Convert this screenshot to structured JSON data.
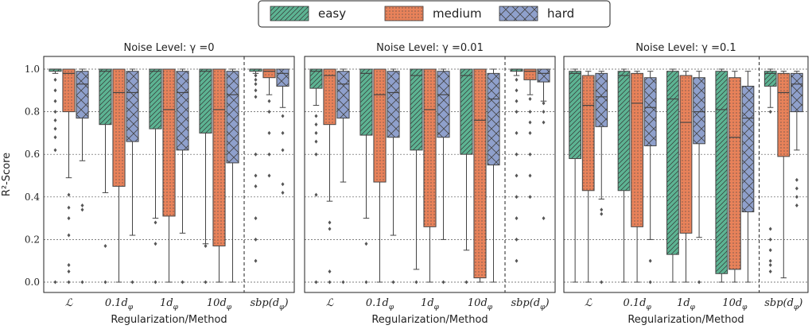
{
  "colors": {
    "easy": "#5db493",
    "medium": "#e8825a",
    "hard": "#8fa0cc"
  },
  "legend": {
    "placement": "top-center",
    "entries": [
      {
        "name": "easy",
        "pattern": "diagonal-hatch"
      },
      {
        "name": "medium",
        "pattern": "dots"
      },
      {
        "name": "hard",
        "pattern": "cross-hatch"
      }
    ]
  },
  "chart_data": [
    {
      "type": "boxplot",
      "title": "Noise Level: γ =0",
      "xlabel": "Regularization/Method",
      "ylabel": "R²-Score",
      "ylim": [
        0,
        1.0
      ],
      "yticks": [
        "0.0",
        "0.2",
        "0.4",
        "0.6",
        "0.8",
        "1.0"
      ],
      "grid": true,
      "categories": [
        "𝓛",
        "0.1d_φ",
        "1d_φ",
        "10d_φ",
        "sbp(d_φ)"
      ],
      "category_labels": [
        [
          "ℒ",
          ""
        ],
        [
          "0.1d",
          "φ"
        ],
        [
          "1d",
          "φ"
        ],
        [
          "10d",
          "φ"
        ],
        [
          "sbp(d",
          "φ",
          ")"
        ]
      ],
      "series": [
        {
          "name": "easy",
          "boxes": [
            {
              "q1": 0.99,
              "med": 1.0,
              "q3": 1.0,
              "wlo": 0.98,
              "whi": 1.0,
              "fliers": [
                0.95,
                0.9,
                0.85,
                0.8,
                0.76,
                0.72,
                0.68,
                0.62,
                0.0
              ]
            },
            {
              "q1": 0.74,
              "med": 0.99,
              "q3": 1.0,
              "wlo": 0.42,
              "whi": 1.0,
              "fliers": [
                0.17,
                0.0
              ]
            },
            {
              "q1": 0.72,
              "med": 0.99,
              "q3": 1.0,
              "wlo": 0.3,
              "whi": 1.0,
              "fliers": [
                0.28,
                0.18,
                0.0
              ]
            },
            {
              "q1": 0.7,
              "med": 0.99,
              "q3": 1.0,
              "wlo": 0.18,
              "whi": 1.0,
              "fliers": [
                0.17,
                0.0
              ]
            },
            {
              "q1": 0.99,
              "med": 1.0,
              "q3": 1.0,
              "wlo": 0.98,
              "whi": 1.0,
              "fliers": [
                0.97,
                0.95,
                0.93,
                0.9,
                0.87,
                0.6,
                0.5,
                0.45,
                0.3,
                0.2,
                0.1
              ]
            }
          ]
        },
        {
          "name": "medium",
          "boxes": [
            {
              "q1": 0.8,
              "med": 0.98,
              "q3": 1.0,
              "wlo": 0.49,
              "whi": 1.0,
              "fliers": [
                0.41,
                0.35,
                0.3,
                0.22,
                0.08,
                0.05,
                0.0
              ]
            },
            {
              "q1": 0.45,
              "med": 0.89,
              "q3": 1.0,
              "wlo": 0.0,
              "whi": 1.0,
              "fliers": []
            },
            {
              "q1": 0.31,
              "med": 0.81,
              "q3": 1.0,
              "wlo": 0.0,
              "whi": 1.0,
              "fliers": []
            },
            {
              "q1": 0.17,
              "med": 0.81,
              "q3": 1.0,
              "wlo": 0.0,
              "whi": 1.0,
              "fliers": []
            },
            {
              "q1": 0.96,
              "med": 0.99,
              "q3": 1.0,
              "wlo": 0.88,
              "whi": 1.0,
              "fliers": [
                0.85,
                0.8,
                0.7,
                0.6,
                0.5
              ]
            }
          ]
        },
        {
          "name": "hard",
          "boxes": [
            {
              "q1": 0.77,
              "med": 0.93,
              "q3": 0.99,
              "wlo": 0.57,
              "whi": 1.0,
              "fliers": [
                0.36,
                0.34,
                0.0
              ]
            },
            {
              "q1": 0.66,
              "med": 0.89,
              "q3": 0.99,
              "wlo": 0.22,
              "whi": 1.0,
              "fliers": [
                0.0
              ]
            },
            {
              "q1": 0.62,
              "med": 0.89,
              "q3": 0.99,
              "wlo": 0.23,
              "whi": 1.0,
              "fliers": [
                0.0
              ]
            },
            {
              "q1": 0.56,
              "med": 0.88,
              "q3": 0.99,
              "wlo": 0.0,
              "whi": 1.0,
              "fliers": []
            },
            {
              "q1": 0.92,
              "med": 0.98,
              "q3": 1.0,
              "wlo": 0.82,
              "whi": 1.0,
              "fliers": [
                0.78,
                0.7,
                0.62,
                0.46,
                0.42
              ]
            }
          ]
        }
      ]
    },
    {
      "type": "boxplot",
      "title": "Noise Level: γ =0.01",
      "xlabel": "Regularization/Method",
      "ylim": [
        0,
        1.0
      ],
      "grid": true,
      "categories": [
        "𝓛",
        "0.1d_φ",
        "1d_φ",
        "10d_φ",
        "sbp(d_φ)"
      ],
      "category_labels": [
        [
          "ℒ",
          ""
        ],
        [
          "0.1d",
          "φ"
        ],
        [
          "1d",
          "φ"
        ],
        [
          "10d",
          "φ"
        ],
        [
          "sbp(d",
          "φ",
          ")"
        ]
      ],
      "series": [
        {
          "name": "easy",
          "boxes": [
            {
              "q1": 0.91,
              "med": 0.99,
              "q3": 1.0,
              "wlo": 0.83,
              "whi": 1.0,
              "fliers": [
                0.78,
                0.74,
                0.7,
                0.66,
                0.6,
                0.41,
                0.0
              ]
            },
            {
              "q1": 0.69,
              "med": 0.98,
              "q3": 1.0,
              "wlo": 0.3,
              "whi": 1.0,
              "fliers": [
                0.18,
                0.0
              ]
            },
            {
              "q1": 0.62,
              "med": 0.97,
              "q3": 1.0,
              "wlo": 0.06,
              "whi": 1.0,
              "fliers": [
                0.0
              ]
            },
            {
              "q1": 0.6,
              "med": 0.97,
              "q3": 1.0,
              "wlo": 0.15,
              "whi": 1.0,
              "fliers": [
                0.0
              ]
            },
            {
              "q1": 0.99,
              "med": 1.0,
              "q3": 1.0,
              "wlo": 0.97,
              "whi": 1.0,
              "fliers": [
                0.95,
                0.9,
                0.85,
                0.8,
                0.7,
                0.6,
                0.5,
                0.4,
                0.3,
                0.2,
                0.1
              ]
            }
          ]
        },
        {
          "name": "medium",
          "boxes": [
            {
              "q1": 0.74,
              "med": 0.97,
              "q3": 1.0,
              "wlo": 0.38,
              "whi": 1.0,
              "fliers": [
                0.28,
                0.25,
                0.05,
                0.0
              ]
            },
            {
              "q1": 0.47,
              "med": 0.88,
              "q3": 1.0,
              "wlo": 0.0,
              "whi": 1.0,
              "fliers": []
            },
            {
              "q1": 0.26,
              "med": 0.81,
              "q3": 1.0,
              "wlo": 0.0,
              "whi": 1.0,
              "fliers": []
            },
            {
              "q1": 0.02,
              "med": 0.76,
              "q3": 1.0,
              "wlo": 0.0,
              "whi": 1.0,
              "fliers": []
            },
            {
              "q1": 0.95,
              "med": 0.99,
              "q3": 1.0,
              "wlo": 0.88,
              "whi": 1.0,
              "fliers": [
                0.86,
                0.8,
                0.75,
                0.7,
                0.6,
                0.5,
                0.4
              ]
            }
          ]
        },
        {
          "name": "hard",
          "boxes": [
            {
              "q1": 0.77,
              "med": 0.93,
              "q3": 0.99,
              "wlo": 0.47,
              "whi": 1.0,
              "fliers": [
                0.0
              ]
            },
            {
              "q1": 0.68,
              "med": 0.89,
              "q3": 0.99,
              "wlo": 0.22,
              "whi": 1.0,
              "fliers": [
                0.0
              ]
            },
            {
              "q1": 0.68,
              "med": 0.88,
              "q3": 0.99,
              "wlo": 0.2,
              "whi": 1.0,
              "fliers": [
                0.0
              ]
            },
            {
              "q1": 0.55,
              "med": 0.86,
              "q3": 0.98,
              "wlo": 0.0,
              "whi": 1.0,
              "fliers": []
            },
            {
              "q1": 0.94,
              "med": 0.98,
              "q3": 1.0,
              "wlo": 0.85,
              "whi": 1.0,
              "fliers": [
                0.84,
                0.8,
                0.75,
                0.3
              ]
            }
          ]
        }
      ]
    },
    {
      "type": "boxplot",
      "title": "Noise Level: γ =0.1",
      "xlabel": "Regularization/Method",
      "ylim": [
        0,
        1.0
      ],
      "grid": true,
      "categories": [
        "𝓛",
        "0.1d_φ",
        "1d_φ",
        "10d_φ",
        "sbp(d_φ)"
      ],
      "category_labels": [
        [
          "ℒ",
          ""
        ],
        [
          "0.1d",
          "φ"
        ],
        [
          "1d",
          "φ"
        ],
        [
          "10d",
          "φ"
        ],
        [
          "sbp(d",
          "φ",
          ")"
        ]
      ],
      "series": [
        {
          "name": "easy",
          "boxes": [
            {
              "q1": 0.58,
              "med": 0.98,
              "q3": 0.99,
              "wlo": 0.0,
              "whi": 1.0,
              "fliers": []
            },
            {
              "q1": 0.43,
              "med": 0.97,
              "q3": 0.99,
              "wlo": 0.0,
              "whi": 1.0,
              "fliers": []
            },
            {
              "q1": 0.13,
              "med": 0.86,
              "q3": 0.99,
              "wlo": 0.0,
              "whi": 1.0,
              "fliers": []
            },
            {
              "q1": 0.04,
              "med": 0.81,
              "q3": 0.99,
              "wlo": 0.0,
              "whi": 1.0,
              "fliers": []
            },
            {
              "q1": 0.92,
              "med": 0.98,
              "q3": 0.99,
              "wlo": 0.82,
              "whi": 1.0,
              "fliers": [
                0.8,
                0.25,
                0.2,
                0.15,
                0.1,
                0.08,
                0.05
              ]
            }
          ]
        },
        {
          "name": "medium",
          "boxes": [
            {
              "q1": 0.43,
              "med": 0.83,
              "q3": 0.97,
              "wlo": 0.0,
              "whi": 0.99,
              "fliers": []
            },
            {
              "q1": 0.26,
              "med": 0.84,
              "q3": 0.98,
              "wlo": 0.0,
              "whi": 0.99,
              "fliers": []
            },
            {
              "q1": 0.23,
              "med": 0.75,
              "q3": 0.97,
              "wlo": 0.0,
              "whi": 0.99,
              "fliers": []
            },
            {
              "q1": 0.06,
              "med": 0.68,
              "q3": 0.96,
              "wlo": 0.0,
              "whi": 0.99,
              "fliers": []
            },
            {
              "q1": 0.59,
              "med": 0.89,
              "q3": 0.98,
              "wlo": 0.02,
              "whi": 0.99,
              "fliers": []
            }
          ]
        },
        {
          "name": "hard",
          "boxes": [
            {
              "q1": 0.73,
              "med": 0.87,
              "q3": 0.98,
              "wlo": 0.39,
              "whi": 0.99,
              "fliers": [
                0.34,
                0.32,
                0.0
              ]
            },
            {
              "q1": 0.64,
              "med": 0.82,
              "q3": 0.96,
              "wlo": 0.2,
              "whi": 0.99,
              "fliers": [
                0.1,
                0.0
              ]
            },
            {
              "q1": 0.65,
              "med": 0.8,
              "q3": 0.96,
              "wlo": 0.21,
              "whi": 0.99,
              "fliers": [
                0.0
              ]
            },
            {
              "q1": 0.33,
              "med": 0.77,
              "q3": 0.92,
              "wlo": 0.0,
              "whi": 0.99,
              "fliers": []
            },
            {
              "q1": 0.8,
              "med": 0.93,
              "q3": 0.98,
              "wlo": 0.62,
              "whi": 0.99,
              "fliers": [
                0.48,
                0.44,
                0.4,
                0.36
              ]
            }
          ]
        }
      ]
    }
  ]
}
